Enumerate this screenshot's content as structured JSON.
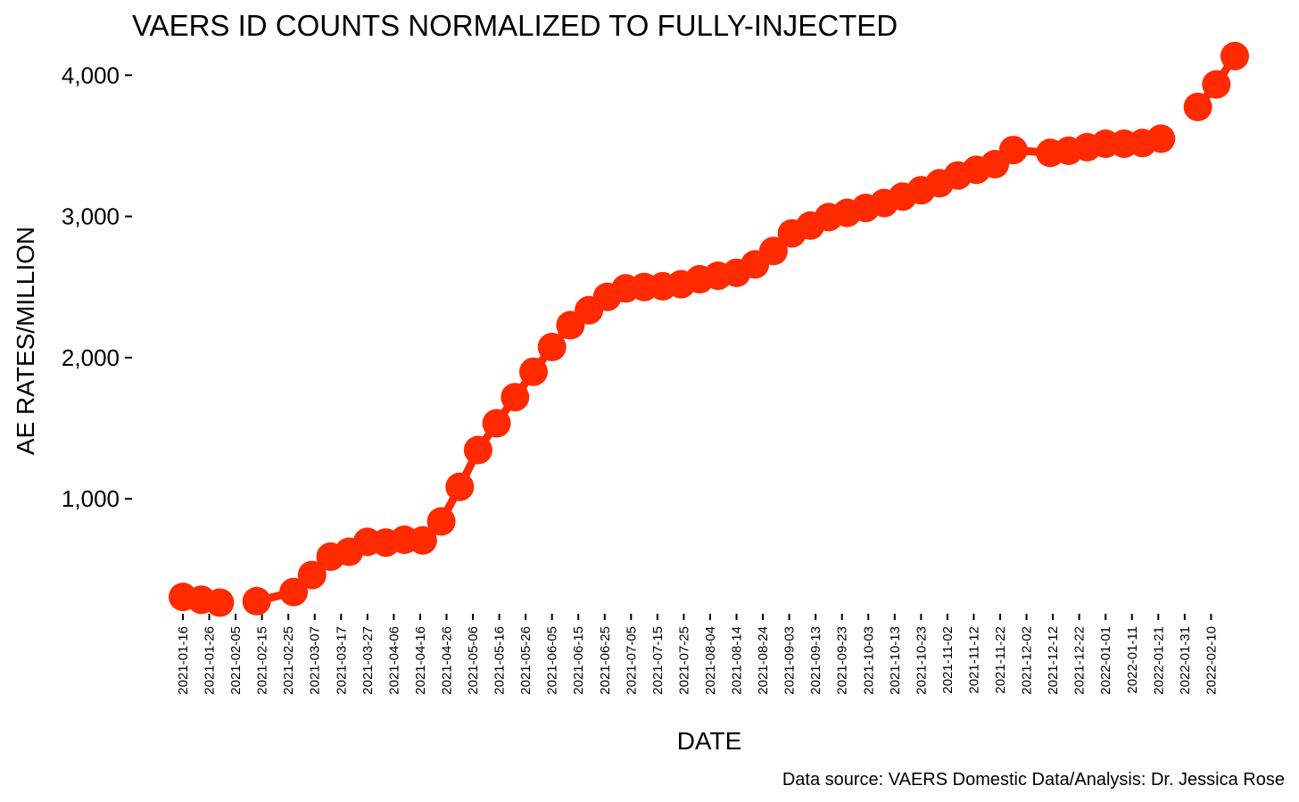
{
  "chart_data": {
    "type": "line",
    "title": "VAERS ID COUNTS NORMALIZED TO FULLY-INJECTED",
    "xlabel": "DATE",
    "ylabel": "AE RATES/MILLION",
    "caption": "Data source: VAERS Domestic Data/Analysis: Dr. Jessica Rose",
    "x_start": "2021-01-16",
    "x_end": "2022-02-19",
    "ylim": [
      110,
      4280
    ],
    "yticks": [
      {
        "value": 1000,
        "label": "1,000"
      },
      {
        "value": 2000,
        "label": "2,000"
      },
      {
        "value": 3000,
        "label": "3,000"
      },
      {
        "value": 4000,
        "label": "4,000"
      }
    ],
    "xticks": [
      "2021-01-16",
      "2021-01-26",
      "2021-02-05",
      "2021-02-15",
      "2021-02-25",
      "2021-03-07",
      "2021-03-17",
      "2021-03-27",
      "2021-04-06",
      "2021-04-16",
      "2021-04-26",
      "2021-05-06",
      "2021-05-16",
      "2021-05-26",
      "2021-06-05",
      "2021-06-15",
      "2021-06-25",
      "2021-07-05",
      "2021-07-15",
      "2021-07-25",
      "2021-08-04",
      "2021-08-14",
      "2021-08-24",
      "2021-09-03",
      "2021-09-13",
      "2021-09-23",
      "2021-10-03",
      "2021-10-13",
      "2021-10-23",
      "2021-11-02",
      "2021-11-12",
      "2021-11-22",
      "2021-12-02",
      "2021-12-12",
      "2021-12-22",
      "2022-01-01",
      "2022-01-11",
      "2022-01-21",
      "2022-01-31",
      "2022-02-10"
    ],
    "grid": false,
    "color": "#FF2A00",
    "series": [
      {
        "segments": [
          [
            {
              "x": "2021-01-16",
              "y": 305
            },
            {
              "x": "2021-01-23",
              "y": 285
            },
            {
              "x": "2021-01-30",
              "y": 265
            }
          ],
          [
            {
              "x": "2021-02-13",
              "y": 275
            },
            {
              "x": "2021-02-27",
              "y": 340
            },
            {
              "x": "2021-03-06",
              "y": 460
            },
            {
              "x": "2021-03-13",
              "y": 590
            },
            {
              "x": "2021-03-20",
              "y": 625
            },
            {
              "x": "2021-03-27",
              "y": 695
            },
            {
              "x": "2021-04-03",
              "y": 690
            },
            {
              "x": "2021-04-10",
              "y": 710
            },
            {
              "x": "2021-04-17",
              "y": 705
            },
            {
              "x": "2021-04-24",
              "y": 840
            },
            {
              "x": "2021-05-01",
              "y": 1085
            },
            {
              "x": "2021-05-08",
              "y": 1345
            },
            {
              "x": "2021-05-15",
              "y": 1535
            },
            {
              "x": "2021-05-22",
              "y": 1720
            },
            {
              "x": "2021-05-29",
              "y": 1900
            },
            {
              "x": "2021-06-05",
              "y": 2075
            },
            {
              "x": "2021-06-12",
              "y": 2230
            },
            {
              "x": "2021-06-19",
              "y": 2335
            },
            {
              "x": "2021-06-26",
              "y": 2430
            },
            {
              "x": "2021-07-03",
              "y": 2490
            },
            {
              "x": "2021-07-10",
              "y": 2500
            },
            {
              "x": "2021-07-17",
              "y": 2505
            },
            {
              "x": "2021-07-24",
              "y": 2520
            },
            {
              "x": "2021-07-31",
              "y": 2555
            },
            {
              "x": "2021-08-07",
              "y": 2580
            },
            {
              "x": "2021-08-14",
              "y": 2600
            },
            {
              "x": "2021-08-21",
              "y": 2660
            },
            {
              "x": "2021-08-28",
              "y": 2755
            },
            {
              "x": "2021-09-04",
              "y": 2880
            },
            {
              "x": "2021-09-11",
              "y": 2935
            },
            {
              "x": "2021-09-18",
              "y": 2995
            },
            {
              "x": "2021-09-25",
              "y": 3025
            },
            {
              "x": "2021-10-02",
              "y": 3060
            },
            {
              "x": "2021-10-09",
              "y": 3095
            },
            {
              "x": "2021-10-16",
              "y": 3140
            },
            {
              "x": "2021-10-23",
              "y": 3185
            },
            {
              "x": "2021-10-30",
              "y": 3235
            },
            {
              "x": "2021-11-06",
              "y": 3290
            },
            {
              "x": "2021-11-13",
              "y": 3330
            },
            {
              "x": "2021-11-20",
              "y": 3370
            },
            {
              "x": "2021-11-27",
              "y": 3470
            },
            {
              "x": "2021-12-11",
              "y": 3450
            },
            {
              "x": "2021-12-18",
              "y": 3465
            },
            {
              "x": "2021-12-25",
              "y": 3490
            },
            {
              "x": "2022-01-01",
              "y": 3515
            },
            {
              "x": "2022-01-08",
              "y": 3515
            },
            {
              "x": "2022-01-15",
              "y": 3520
            },
            {
              "x": "2022-01-22",
              "y": 3550
            }
          ],
          [
            {
              "x": "2022-02-05",
              "y": 3775
            },
            {
              "x": "2022-02-12",
              "y": 3935
            },
            {
              "x": "2022-02-19",
              "y": 4135
            }
          ]
        ]
      }
    ]
  }
}
